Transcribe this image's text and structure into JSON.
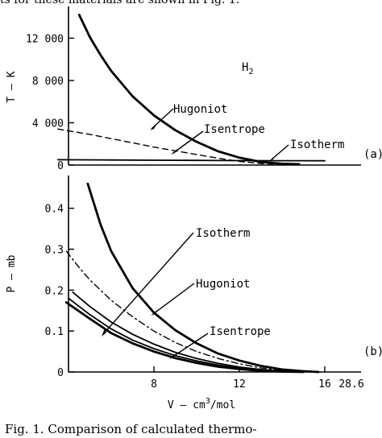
{
  "header_text": "ts for these materials are shown in Fig. 1.",
  "caption": "Fig. 1.   Comparison of calculated thermo-",
  "chart_data": [
    {
      "type": "line",
      "panel_label": "(a)",
      "annotation": "H2",
      "ylabel": "T — K",
      "xlim": [
        4,
        16
      ],
      "ylim": [
        0,
        15000
      ],
      "yticks": [
        0,
        4000,
        8000,
        12000
      ],
      "ytick_labels": [
        "0",
        "4 000",
        "8 000",
        "12 000"
      ],
      "series": [
        {
          "name": "Hugoniot",
          "style": "solid-bold",
          "x": [
            4.5,
            5,
            5.5,
            6,
            7,
            8,
            9,
            10,
            11,
            12,
            13,
            14,
            14.8
          ],
          "y": [
            14200,
            12100,
            10400,
            8900,
            6500,
            4700,
            3300,
            2200,
            1300,
            700,
            300,
            120,
            80
          ]
        },
        {
          "name": "Isentrope",
          "style": "dashed",
          "x": [
            3.5,
            5,
            6,
            7,
            8,
            9,
            10,
            11,
            12,
            13,
            14
          ],
          "y": [
            3400,
            2900,
            2500,
            2100,
            1700,
            1350,
            1000,
            650,
            350,
            150,
            60
          ]
        },
        {
          "name": "Isotherm",
          "style": "solid",
          "x": [
            3.5,
            6,
            8,
            10,
            12,
            14,
            16
          ],
          "y": [
            500,
            480,
            460,
            440,
            420,
            410,
            400
          ]
        }
      ]
    },
    {
      "type": "line",
      "panel_label": "(b)",
      "ylabel": "P — mb",
      "xlabel_main": "V — cm",
      "xlabel_sup": "3",
      "xlabel_unit": "/mol",
      "xlim": [
        4,
        16
      ],
      "ylim": [
        0,
        0.48
      ],
      "yticks": [
        0,
        0.1,
        0.2,
        0.3,
        0.4
      ],
      "ytick_labels": [
        "0",
        "0.1",
        "0.2",
        "0.3",
        "0.4"
      ],
      "xticks": [
        8,
        12,
        16
      ],
      "xtick_labels": [
        "8",
        "12",
        "16"
      ],
      "extra_xtick_label": "28.6",
      "series": [
        {
          "name": "Hugoniot",
          "style": "solid-bold",
          "x": [
            4.9,
            5.5,
            6,
            7,
            8,
            9,
            10,
            11,
            12,
            13,
            14,
            15,
            15.7
          ],
          "y": [
            0.46,
            0.36,
            0.295,
            0.205,
            0.145,
            0.102,
            0.07,
            0.045,
            0.028,
            0.015,
            0.006,
            0.002,
            0.0
          ]
        },
        {
          "name": "",
          "style": "dash-dot",
          "x": [
            3.9,
            4.5,
            5,
            6,
            7,
            8,
            9,
            10,
            11,
            12,
            13,
            14,
            15
          ],
          "y": [
            0.295,
            0.255,
            0.225,
            0.175,
            0.135,
            0.1,
            0.072,
            0.05,
            0.033,
            0.02,
            0.01,
            0.004,
            0.0
          ]
        },
        {
          "name": "",
          "style": "solid",
          "x": [
            4.2,
            5,
            6,
            7,
            8,
            9,
            10,
            11,
            12,
            13,
            14,
            15
          ],
          "y": [
            0.195,
            0.16,
            0.122,
            0.092,
            0.068,
            0.048,
            0.033,
            0.021,
            0.012,
            0.006,
            0.002,
            0.0
          ]
        },
        {
          "name": "Isentrope",
          "style": "solid",
          "x": [
            4,
            5,
            6,
            7,
            8,
            9,
            10,
            11,
            12,
            13,
            14,
            15
          ],
          "y": [
            0.18,
            0.14,
            0.105,
            0.078,
            0.057,
            0.04,
            0.027,
            0.017,
            0.009,
            0.004,
            0.001,
            0.0
          ]
        },
        {
          "name": "Isotherm",
          "style": "solid-bold",
          "x": [
            3.9,
            5,
            6,
            7,
            8,
            9,
            10,
            11,
            12,
            13,
            14,
            15
          ],
          "y": [
            0.17,
            0.13,
            0.095,
            0.07,
            0.05,
            0.034,
            0.022,
            0.013,
            0.007,
            0.003,
            0.001,
            0.0
          ]
        }
      ]
    }
  ]
}
